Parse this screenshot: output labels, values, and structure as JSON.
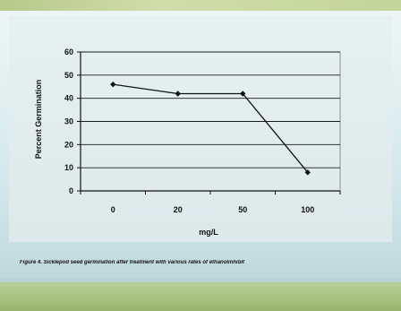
{
  "chart_data": {
    "type": "line",
    "categories": [
      "0",
      "20",
      "50",
      "100"
    ],
    "series": [
      {
        "values": [
          46,
          42,
          42,
          8
        ]
      }
    ],
    "xlabel": "mg/L",
    "ylabel": "Percent Germination",
    "ylim": [
      0,
      60
    ],
    "yticks": [
      0,
      10,
      20,
      30,
      40,
      50,
      60
    ],
    "grid": true,
    "line_color": "#111111",
    "marker": "diamond"
  },
  "caption": "Figure 4. Sicklepod seed germination after treatment with various rates of ethanolinhibit"
}
